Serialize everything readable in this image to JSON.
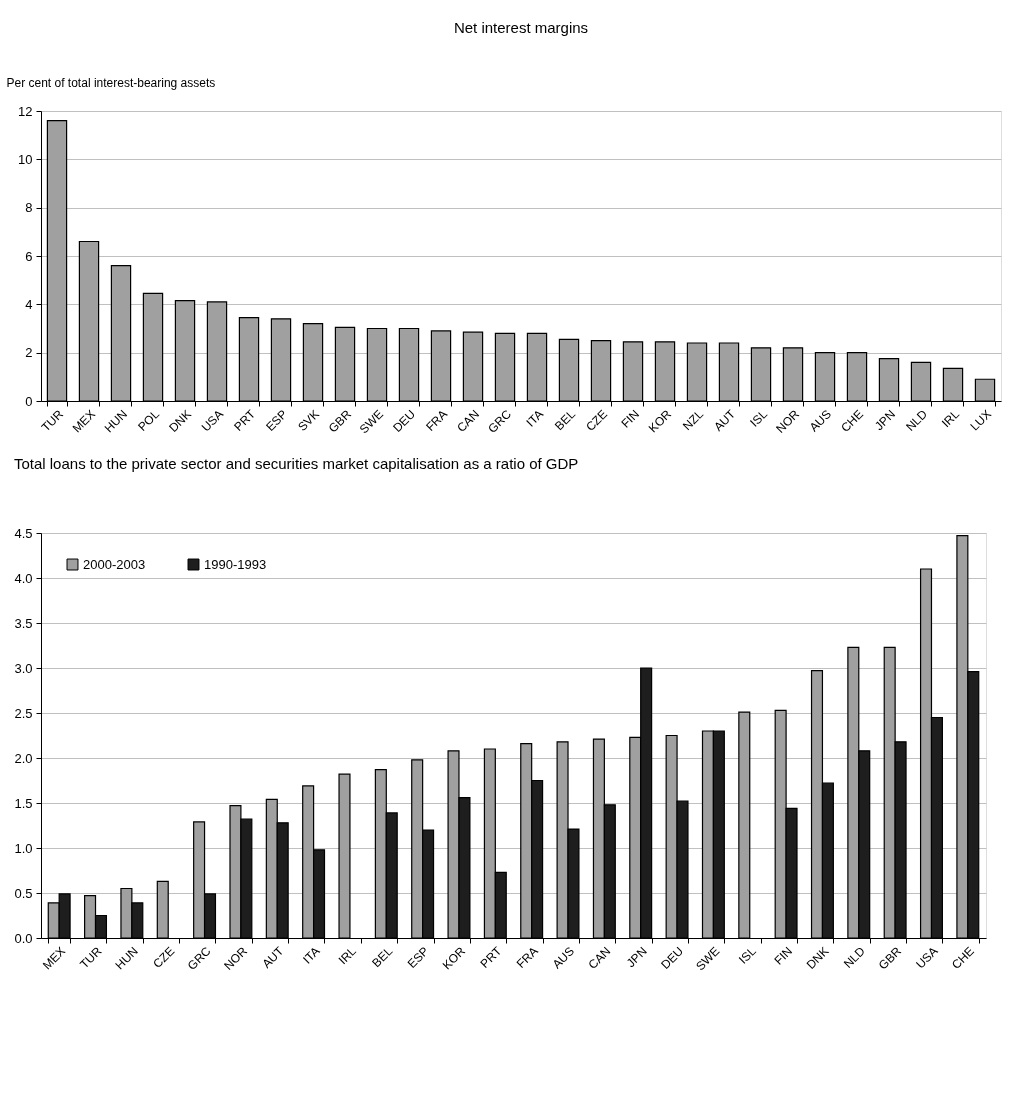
{
  "chart_data": [
    {
      "type": "bar",
      "title": "Net interest margins",
      "ylabel": "Per cent of total interest-bearing assets",
      "categories": [
        "TUR",
        "MEX",
        "HUN",
        "POL",
        "DNK",
        "USA",
        "PRT",
        "ESP",
        "SVK",
        "GBR",
        "SWE",
        "DEU",
        "FRA",
        "CAN",
        "GRC",
        "ITA",
        "BEL",
        "CZE",
        "FIN",
        "KOR",
        "NZL",
        "AUT",
        "ISL",
        "NOR",
        "AUS",
        "CHE",
        "JPN",
        "NLD",
        "IRL",
        "LUX"
      ],
      "values": [
        11.6,
        6.6,
        5.6,
        4.45,
        4.15,
        4.1,
        3.45,
        3.4,
        3.2,
        3.05,
        3.0,
        3.0,
        2.9,
        2.85,
        2.8,
        2.8,
        2.55,
        2.5,
        2.45,
        2.45,
        2.4,
        2.4,
        2.2,
        2.2,
        2.0,
        2.0,
        1.75,
        1.6,
        1.35,
        0.9
      ],
      "color": "#a0a0a0",
      "ylim": [
        0,
        12
      ],
      "yticks": [
        0,
        2,
        4,
        6,
        8,
        10,
        12
      ],
      "grid": "y"
    },
    {
      "type": "bar",
      "title": "Total loans to the private sector and securities market capitalisation as a ratio of GDP",
      "categories": [
        "MEX",
        "TUR",
        "HUN",
        "CZE",
        "GRC",
        "NOR",
        "AUT",
        "ITA",
        "IRL",
        "BEL",
        "ESP",
        "KOR",
        "PRT",
        "FRA",
        "AUS",
        "CAN",
        "JPN",
        "DEU",
        "SWE",
        "ISL",
        "FIN",
        "DNK",
        "NLD",
        "GBR",
        "USA",
        "CHE"
      ],
      "series": [
        {
          "name": "2000-2003",
          "color": "#a0a0a0",
          "values": [
            0.39,
            0.47,
            0.55,
            0.63,
            1.29,
            1.47,
            1.54,
            1.69,
            1.82,
            1.87,
            1.98,
            2.08,
            2.1,
            2.16,
            2.18,
            2.21,
            2.23,
            2.25,
            2.3,
            2.51,
            2.53,
            2.97,
            3.23,
            3.23,
            4.1,
            4.47
          ]
        },
        {
          "name": "1990-1993",
          "color": "#1e1e1e",
          "values": [
            0.49,
            0.25,
            0.39,
            null,
            0.49,
            1.32,
            1.28,
            0.98,
            null,
            1.39,
            1.2,
            1.56,
            0.73,
            1.75,
            1.21,
            1.48,
            3.0,
            1.52,
            2.3,
            null,
            1.44,
            1.72,
            2.08,
            2.18,
            2.45,
            2.96
          ]
        }
      ],
      "ylim": [
        0,
        4.5
      ],
      "yticks": [
        {
          "value": 0,
          "label": "0.0"
        },
        0.5,
        {
          "value": 1,
          "label": "1.0"
        },
        1.5,
        {
          "value": 2,
          "label": "2.0"
        },
        2.5,
        {
          "value": 3,
          "label": "3.0"
        },
        3.5,
        {
          "value": 4,
          "label": "4.0"
        },
        4.5
      ],
      "grid": "y",
      "legend": "top left"
    }
  ]
}
